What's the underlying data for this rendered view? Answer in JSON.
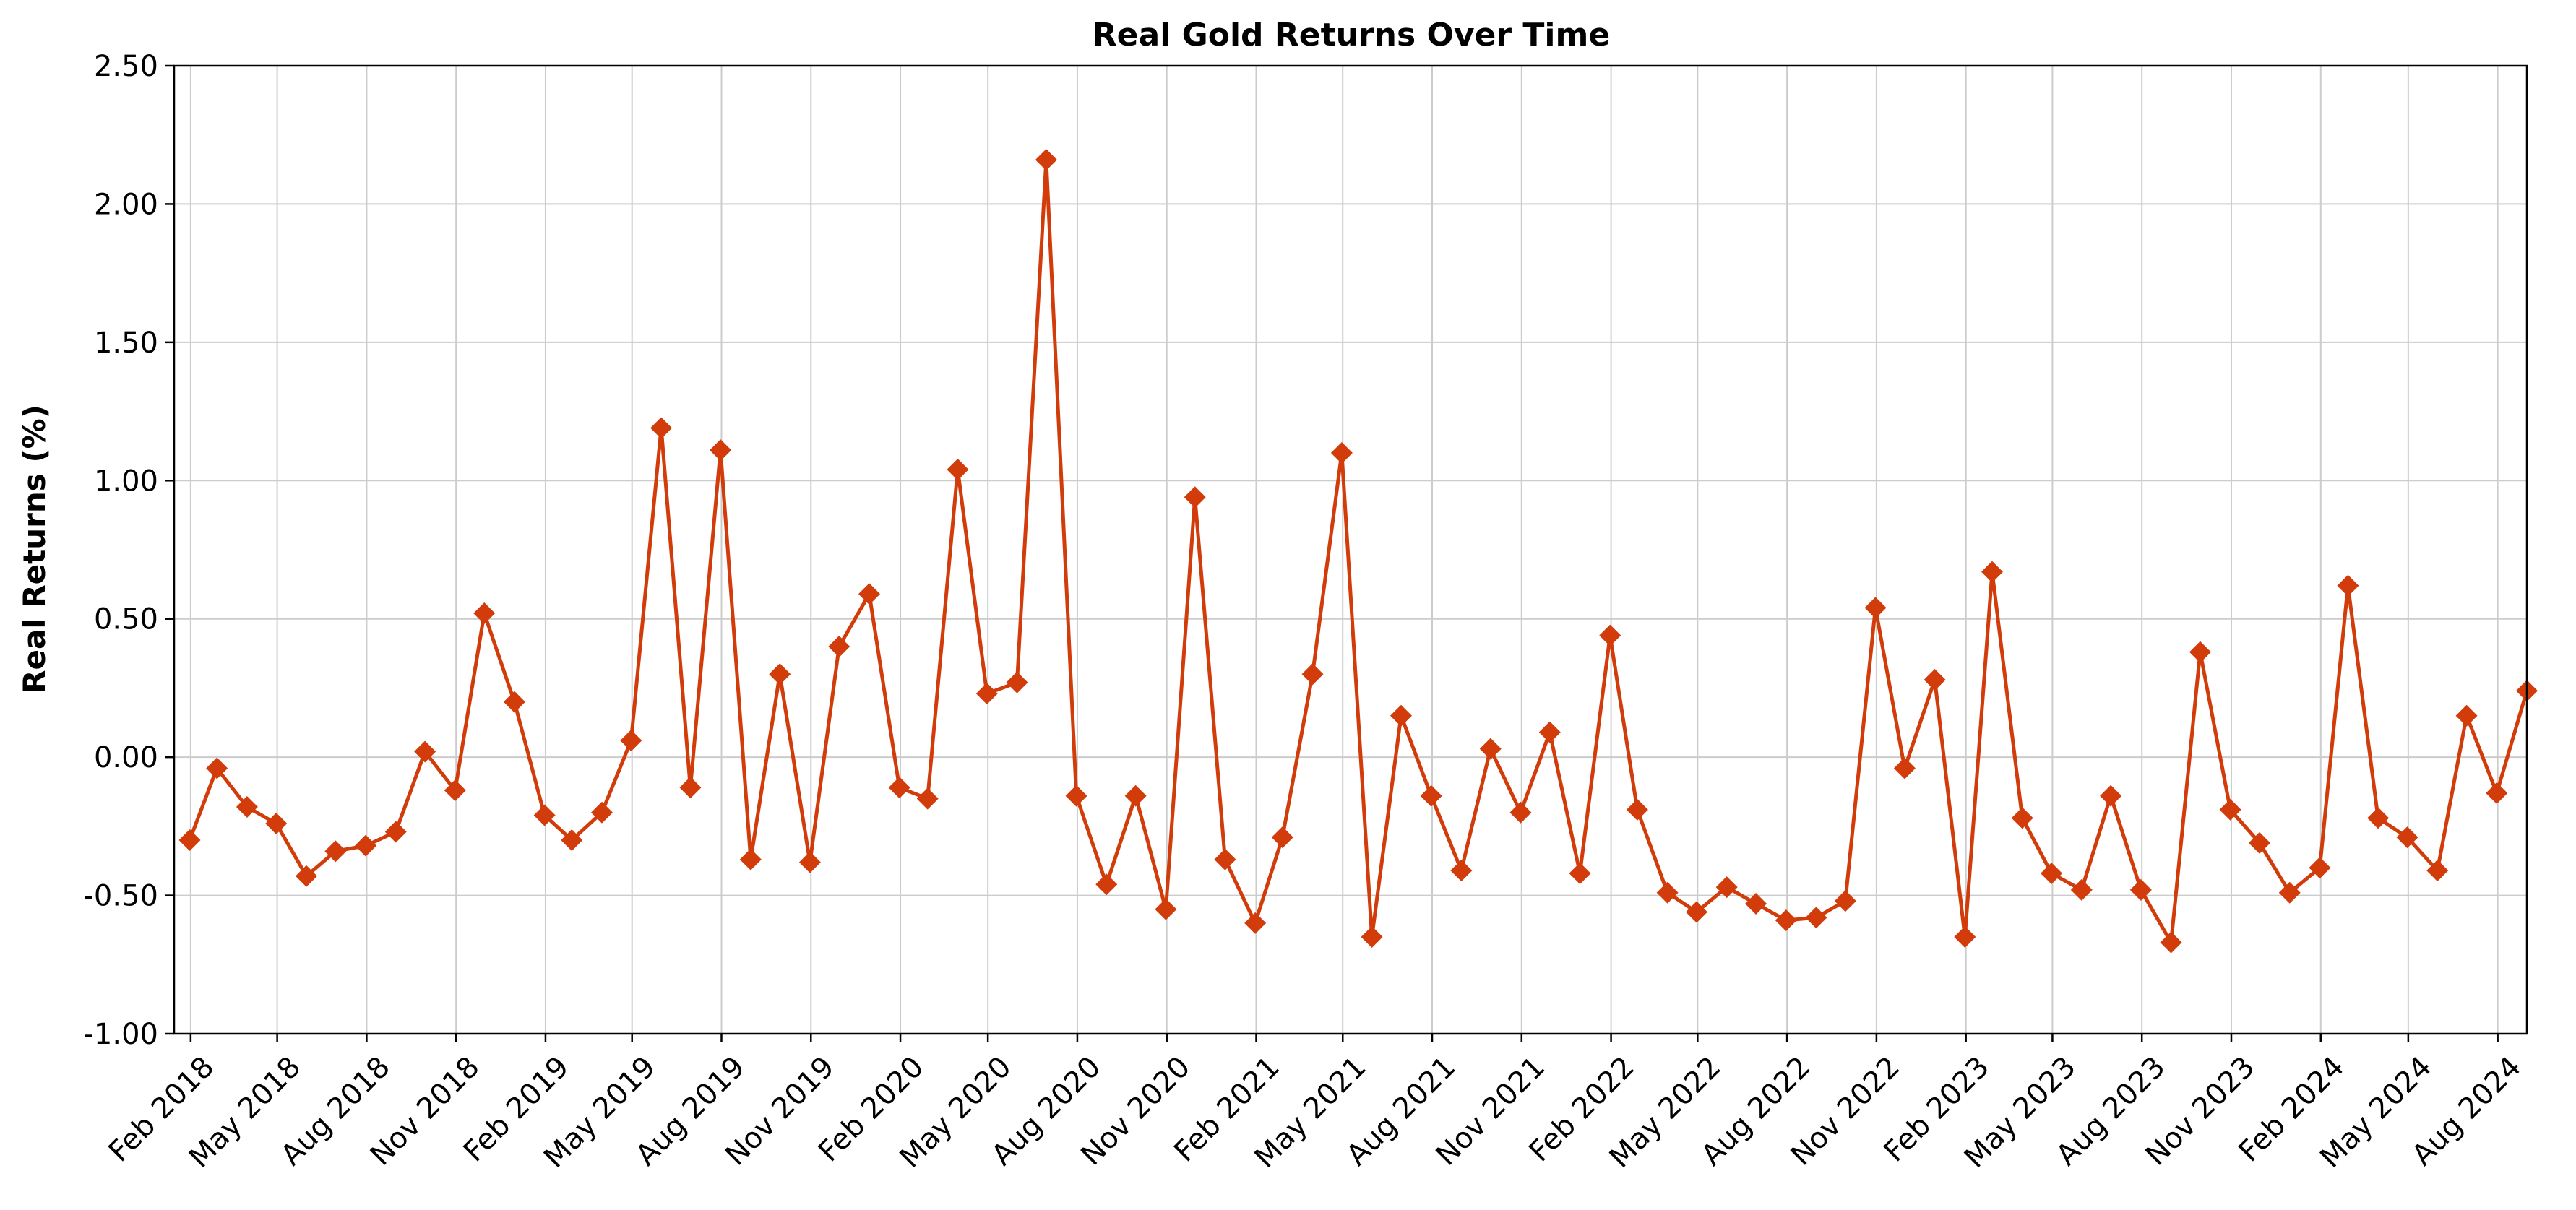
{
  "chart_data": {
    "type": "line",
    "title": "Real Gold Returns Over Time",
    "ylabel": "Real Returns (%)",
    "xlabel": "",
    "ylim": [
      -1.0,
      2.5
    ],
    "yticks": [
      -1.0,
      -0.5,
      0.0,
      0.5,
      1.0,
      1.5,
      2.0,
      2.5
    ],
    "ytick_labels": [
      "-1.00",
      "-0.50",
      "0.00",
      "0.50",
      "1.00",
      "1.50",
      "2.00",
      "2.50"
    ],
    "xlim": [
      "2018-01-15",
      "2024-08-31"
    ],
    "xtick_dates": [
      "2018-02-01",
      "2018-05-01",
      "2018-08-01",
      "2018-11-01",
      "2019-02-01",
      "2019-05-01",
      "2019-08-01",
      "2019-11-01",
      "2020-02-01",
      "2020-05-01",
      "2020-08-01",
      "2020-11-01",
      "2021-02-01",
      "2021-05-01",
      "2021-08-01",
      "2021-11-01",
      "2022-02-01",
      "2022-05-01",
      "2022-08-01",
      "2022-11-01",
      "2023-02-01",
      "2023-05-01",
      "2023-08-01",
      "2023-11-01",
      "2024-02-01",
      "2024-05-01",
      "2024-08-01"
    ],
    "xtick_labels": [
      "Feb 2018",
      "May 2018",
      "Aug 2018",
      "Nov 2018",
      "Feb 2019",
      "May 2019",
      "Aug 2019",
      "Nov 2019",
      "Feb 2020",
      "May 2020",
      "Aug 2020",
      "Nov 2020",
      "Feb 2021",
      "May 2021",
      "Aug 2021",
      "Nov 2021",
      "Feb 2022",
      "May 2022",
      "Aug 2022",
      "Nov 2022",
      "Feb 2023",
      "May 2023",
      "Aug 2023",
      "Nov 2023",
      "Feb 2024",
      "May 2024",
      "Aug 2024"
    ],
    "grid": true,
    "series": [
      {
        "color": "#d23c0a",
        "marker": "diamond",
        "x": [
          "2018-01-31",
          "2018-02-28",
          "2018-03-31",
          "2018-04-30",
          "2018-05-31",
          "2018-06-30",
          "2018-07-31",
          "2018-08-31",
          "2018-09-30",
          "2018-10-31",
          "2018-11-30",
          "2018-12-31",
          "2019-01-31",
          "2019-02-28",
          "2019-03-31",
          "2019-04-30",
          "2019-05-31",
          "2019-06-30",
          "2019-07-31",
          "2019-08-31",
          "2019-09-30",
          "2019-10-31",
          "2019-11-30",
          "2019-12-31",
          "2020-01-31",
          "2020-02-29",
          "2020-03-31",
          "2020-04-30",
          "2020-05-31",
          "2020-06-30",
          "2020-07-31",
          "2020-08-31",
          "2020-09-30",
          "2020-10-31",
          "2020-11-30",
          "2020-12-31",
          "2021-01-31",
          "2021-02-28",
          "2021-03-31",
          "2021-04-30",
          "2021-05-31",
          "2021-06-30",
          "2021-07-31",
          "2021-08-31",
          "2021-09-30",
          "2021-10-31",
          "2021-11-30",
          "2021-12-31",
          "2022-01-31",
          "2022-02-28",
          "2022-03-31",
          "2022-04-30",
          "2022-05-31",
          "2022-06-30",
          "2022-07-31",
          "2022-08-31",
          "2022-09-30",
          "2022-10-31",
          "2022-11-30",
          "2022-12-31",
          "2023-01-31",
          "2023-02-28",
          "2023-03-31",
          "2023-04-30",
          "2023-05-31",
          "2023-06-30",
          "2023-07-31",
          "2023-08-31",
          "2023-09-30",
          "2023-10-31",
          "2023-11-30",
          "2023-12-31",
          "2024-01-31",
          "2024-02-29",
          "2024-03-31",
          "2024-04-30",
          "2024-05-31",
          "2024-06-30",
          "2024-07-31",
          "2024-08-31"
        ],
        "values": [
          -0.3,
          -0.04,
          -0.18,
          -0.24,
          -0.43,
          -0.34,
          -0.32,
          -0.27,
          0.02,
          -0.12,
          0.52,
          0.2,
          -0.21,
          -0.3,
          -0.2,
          0.06,
          1.19,
          -0.11,
          1.11,
          -0.37,
          0.3,
          -0.38,
          0.4,
          0.59,
          -0.11,
          -0.15,
          1.04,
          0.23,
          0.27,
          2.16,
          -0.14,
          -0.46,
          -0.14,
          -0.55,
          0.94,
          -0.37,
          -0.6,
          -0.29,
          0.3,
          1.1,
          -0.65,
          0.15,
          -0.14,
          -0.41,
          0.03,
          -0.2,
          0.09,
          -0.42,
          0.44,
          -0.19,
          -0.49,
          -0.56,
          -0.47,
          -0.53,
          -0.59,
          -0.58,
          -0.52,
          0.54,
          -0.04,
          0.28,
          -0.65,
          0.67,
          -0.22,
          -0.42,
          -0.48,
          -0.14,
          -0.48,
          -0.67,
          0.38,
          -0.19,
          -0.31,
          -0.49,
          -0.4,
          0.62,
          -0.22,
          -0.29,
          -0.41,
          0.15,
          -0.13,
          0.24
        ]
      }
    ]
  }
}
